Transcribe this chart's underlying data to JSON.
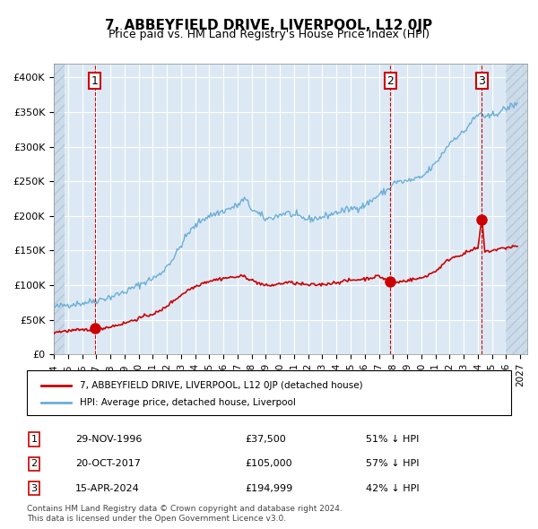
{
  "title": "7, ABBEYFIELD DRIVE, LIVERPOOL, L12 0JP",
  "subtitle": "Price paid vs. HM Land Registry's House Price Index (HPI)",
  "xlabel": "",
  "ylabel": "",
  "ylim": [
    0,
    420000
  ],
  "xlim_start": 1994.0,
  "xlim_end": 2027.5,
  "yticks": [
    0,
    50000,
    100000,
    150000,
    200000,
    250000,
    300000,
    350000,
    400000
  ],
  "ytick_labels": [
    "£0",
    "£50K",
    "£100K",
    "£150K",
    "£200K",
    "£250K",
    "£300K",
    "£350K",
    "£400K"
  ],
  "xtick_years": [
    1994,
    1995,
    1996,
    1997,
    1998,
    1999,
    2000,
    2001,
    2002,
    2003,
    2004,
    2005,
    2006,
    2007,
    2008,
    2009,
    2010,
    2011,
    2012,
    2013,
    2014,
    2015,
    2016,
    2017,
    2018,
    2019,
    2020,
    2021,
    2022,
    2023,
    2024,
    2025,
    2026,
    2027
  ],
  "sale_dates": [
    1996.91,
    2017.8,
    2024.29
  ],
  "sale_prices": [
    37500,
    105000,
    194999
  ],
  "sale_labels": [
    "1",
    "2",
    "3"
  ],
  "hpi_color": "#6baed6",
  "price_color": "#cc0000",
  "sale_dot_color": "#cc0000",
  "background_color": "#dce9f5",
  "grid_color": "#ffffff",
  "vline_color": "#cc0000",
  "legend_label_price": "7, ABBEYFIELD DRIVE, LIVERPOOL, L12 0JP (detached house)",
  "legend_label_hpi": "HPI: Average price, detached house, Liverpool",
  "table_data": [
    [
      "1",
      "29-NOV-1996",
      "£37,500",
      "51% ↓ HPI"
    ],
    [
      "2",
      "20-OCT-2017",
      "£105,000",
      "57% ↓ HPI"
    ],
    [
      "3",
      "15-APR-2024",
      "£194,999",
      "42% ↓ HPI"
    ]
  ],
  "footnote": "Contains HM Land Registry data © Crown copyright and database right 2024.\nThis data is licensed under the Open Government Licence v3.0.",
  "hatch_color": "#b0c4d8"
}
